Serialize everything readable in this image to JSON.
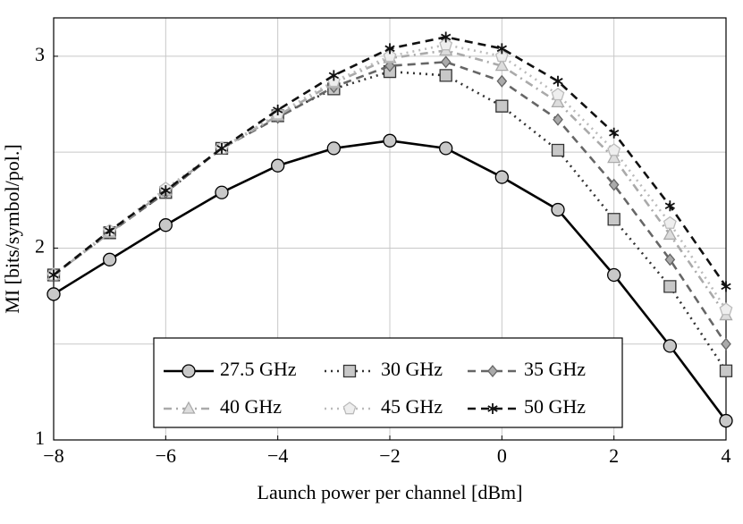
{
  "chart_data": {
    "type": "line",
    "x_label": "Launch power per channel [dBm]",
    "y_label": "MI [bits/symbol/pol.]",
    "x": [
      -8,
      -7,
      -6,
      -5,
      -4,
      -3,
      -2,
      -1,
      0,
      1,
      2,
      3,
      4
    ],
    "xlim": [
      -8,
      4
    ],
    "xticks": [
      {
        "value": -8,
        "label": "−8"
      },
      {
        "value": -6,
        "label": "−6"
      },
      {
        "value": -4,
        "label": "−4"
      },
      {
        "value": -2,
        "label": "−2"
      },
      0,
      2,
      4
    ],
    "ylim": [
      1,
      3.2
    ],
    "yticks": [
      1,
      2,
      3
    ],
    "minor_yticks": [
      1.5,
      2.5
    ],
    "grid": true,
    "legend": "bottom",
    "series": [
      {
        "name": "27.5 GHz",
        "color": "#000000",
        "dash": "solid",
        "marker": "circle",
        "values": [
          1.76,
          1.94,
          2.12,
          2.29,
          2.43,
          2.52,
          2.56,
          2.52,
          2.37,
          2.2,
          1.86,
          1.49,
          1.1
        ]
      },
      {
        "name": "30 GHz",
        "color": "#333333",
        "dash": "dotted",
        "marker": "square",
        "values": [
          1.86,
          2.08,
          2.29,
          2.52,
          2.69,
          2.83,
          2.92,
          2.9,
          2.74,
          2.51,
          2.15,
          1.8,
          1.36
        ]
      },
      {
        "name": "35 GHz",
        "color": "#666666",
        "dash": "dashed",
        "marker": "diamond",
        "values": [
          1.86,
          2.08,
          2.29,
          2.52,
          2.68,
          2.84,
          2.95,
          2.97,
          2.87,
          2.67,
          2.33,
          1.94,
          1.5
        ]
      },
      {
        "name": "40 GHz",
        "color": "#aaaaaa",
        "dash": "dashdot",
        "marker": "triangle",
        "values": [
          1.86,
          2.08,
          2.3,
          2.52,
          2.69,
          2.86,
          2.99,
          3.03,
          2.95,
          2.76,
          2.47,
          2.07,
          1.65
        ]
      },
      {
        "name": "45 GHz",
        "color": "#bbbbbb",
        "dash": "dotted",
        "marker": "pentagon",
        "values": [
          1.86,
          2.09,
          2.31,
          2.52,
          2.7,
          2.87,
          3.0,
          3.06,
          3.0,
          2.8,
          2.51,
          2.13,
          1.68
        ]
      },
      {
        "name": "50 GHz",
        "color": "#111111",
        "dash": "dashed",
        "marker": "star",
        "values": [
          1.86,
          2.09,
          2.3,
          2.52,
          2.72,
          2.9,
          3.04,
          3.1,
          3.04,
          2.87,
          2.6,
          2.22,
          1.8
        ]
      }
    ]
  }
}
